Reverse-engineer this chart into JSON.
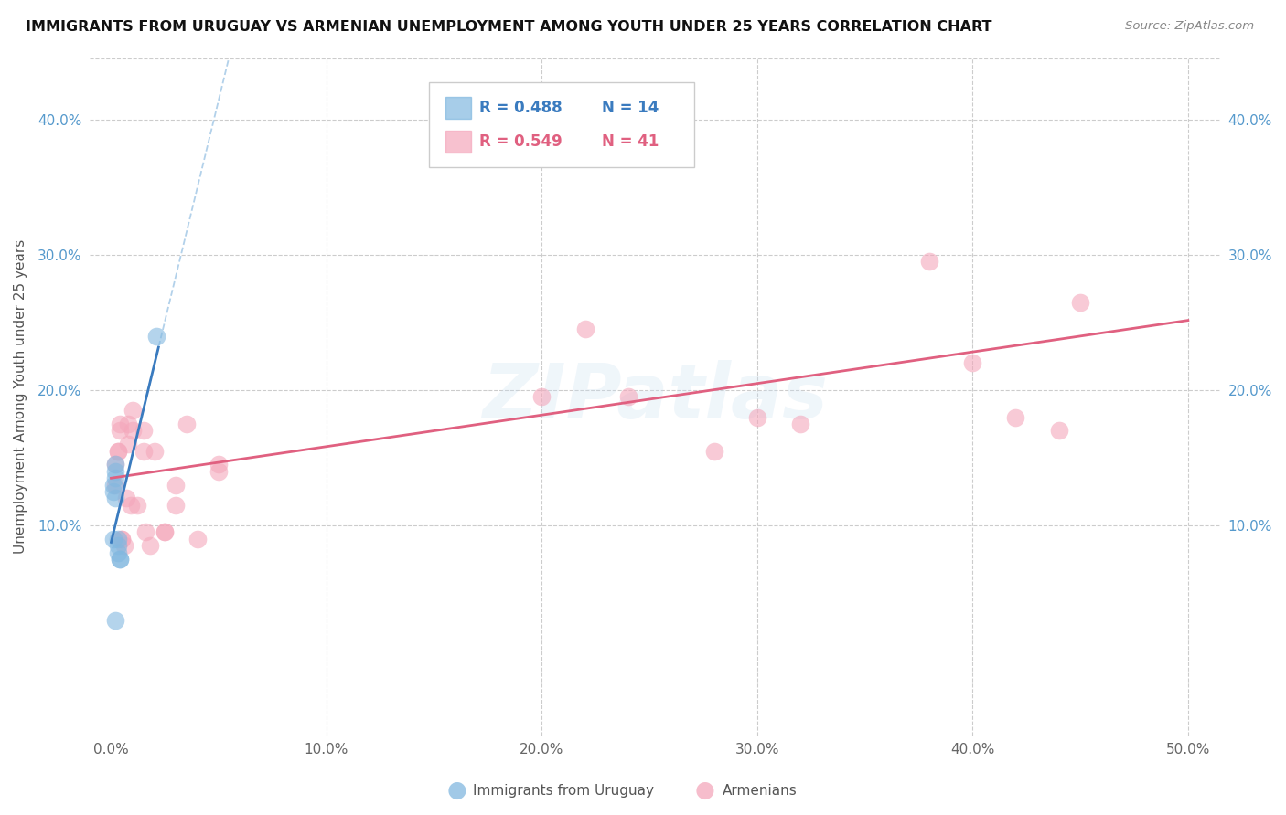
{
  "title": "IMMIGRANTS FROM URUGUAY VS ARMENIAN UNEMPLOYMENT AMONG YOUTH UNDER 25 YEARS CORRELATION CHART",
  "source": "Source: ZipAtlas.com",
  "ylabel": "Unemployment Among Youth under 25 years",
  "yticks": [
    0.1,
    0.2,
    0.3,
    0.4
  ],
  "ytick_labels": [
    "10.0%",
    "20.0%",
    "30.0%",
    "40.0%"
  ],
  "xticks": [
    0.0,
    0.1,
    0.2,
    0.3,
    0.4,
    0.5
  ],
  "xtick_labels": [
    "0.0%",
    "10.0%",
    "20.0%",
    "30.0%",
    "40.0%",
    "50.0%"
  ],
  "xlim": [
    -0.01,
    0.515
  ],
  "ylim": [
    -0.055,
    0.445
  ],
  "watermark": "ZIPatlas",
  "blue_color": "#82b8e0",
  "pink_color": "#f4a7bb",
  "blue_line_color": "#3a7bbf",
  "pink_line_color": "#e06080",
  "blue_dash_color": "#aacce8",
  "legend1_r": "R = 0.488",
  "legend1_n": "N = 14",
  "legend2_r": "R = 0.549",
  "legend2_n": "N = 41",
  "uruguay_x": [
    0.001,
    0.001,
    0.001,
    0.002,
    0.002,
    0.002,
    0.002,
    0.003,
    0.003,
    0.003,
    0.004,
    0.004,
    0.021,
    0.002
  ],
  "uruguay_y": [
    0.13,
    0.125,
    0.09,
    0.12,
    0.135,
    0.145,
    0.14,
    0.09,
    0.085,
    0.08,
    0.075,
    0.075,
    0.24,
    0.03
  ],
  "armenian_x": [
    0.002,
    0.002,
    0.003,
    0.003,
    0.004,
    0.004,
    0.005,
    0.005,
    0.006,
    0.007,
    0.008,
    0.008,
    0.009,
    0.01,
    0.01,
    0.012,
    0.015,
    0.015,
    0.016,
    0.018,
    0.02,
    0.025,
    0.025,
    0.03,
    0.03,
    0.035,
    0.05,
    0.05,
    0.04,
    0.18,
    0.2,
    0.22,
    0.24,
    0.28,
    0.3,
    0.32,
    0.38,
    0.4,
    0.42,
    0.44,
    0.45
  ],
  "armenian_y": [
    0.145,
    0.13,
    0.155,
    0.155,
    0.17,
    0.175,
    0.09,
    0.09,
    0.085,
    0.12,
    0.16,
    0.175,
    0.115,
    0.185,
    0.17,
    0.115,
    0.155,
    0.17,
    0.095,
    0.085,
    0.155,
    0.095,
    0.095,
    0.115,
    0.13,
    0.175,
    0.14,
    0.145,
    0.09,
    0.38,
    0.195,
    0.245,
    0.195,
    0.155,
    0.18,
    0.175,
    0.295,
    0.22,
    0.18,
    0.17,
    0.265
  ]
}
